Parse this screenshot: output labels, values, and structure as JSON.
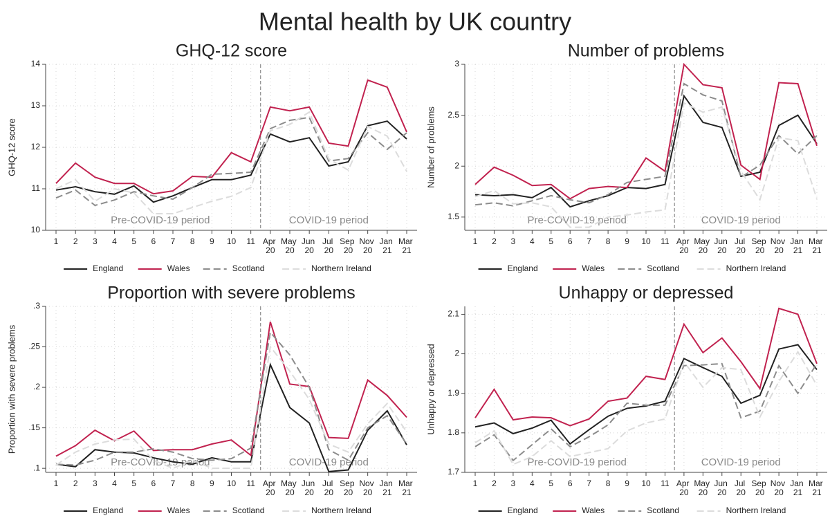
{
  "title": "Mental health by UK country",
  "chart_data": [
    {
      "type": "line",
      "title": "GHQ-12 score",
      "ylabel": "GHQ-12 score",
      "categories": [
        "1",
        "2",
        "3",
        "4",
        "5",
        "6",
        "7",
        "8",
        "9",
        "10",
        "11",
        "Apr 20",
        "May 20",
        "Jun 20",
        "Jul 20",
        "Sep 20",
        "Nov 20",
        "Jan 21",
        "Mar 21"
      ],
      "series": [
        {
          "name": "England",
          "color": "#222222",
          "dash": "solid",
          "values": [
            10.97,
            11.05,
            10.93,
            10.87,
            11.07,
            10.68,
            10.83,
            11.03,
            11.22,
            11.22,
            11.33,
            12.32,
            12.13,
            12.23,
            11.55,
            11.65,
            12.52,
            12.63,
            12.2
          ]
        },
        {
          "name": "Wales",
          "color": "#c1224f",
          "dash": "solid",
          "values": [
            11.13,
            11.62,
            11.28,
            11.13,
            11.13,
            10.88,
            10.95,
            11.3,
            11.28,
            11.87,
            11.65,
            12.97,
            12.88,
            12.97,
            12.1,
            12.03,
            13.62,
            13.45,
            12.37
          ]
        },
        {
          "name": "Scotland",
          "color": "#8c8c8c",
          "dash": "dashed",
          "values": [
            10.78,
            10.97,
            10.6,
            10.73,
            10.93,
            10.83,
            10.75,
            11.03,
            11.35,
            11.37,
            11.4,
            12.45,
            12.65,
            12.72,
            11.67,
            11.73,
            12.35,
            11.95,
            12.35
          ]
        },
        {
          "name": "Northern Ireland",
          "color": "#dcdcdc",
          "dash": "dashed",
          "values": [
            11.0,
            11.22,
            10.7,
            11.0,
            10.9,
            10.4,
            10.4,
            10.55,
            10.7,
            10.82,
            11.03,
            12.4,
            12.55,
            12.85,
            11.72,
            11.45,
            12.5,
            12.27,
            11.42
          ]
        }
      ],
      "ylim": [
        10,
        14
      ],
      "yticks": [
        10,
        11,
        12,
        13,
        14
      ],
      "grid": true,
      "legend": "bottom",
      "annotations": [
        "Pre-COVID-19 period",
        "COVID-19 period"
      ]
    },
    {
      "type": "line",
      "title": "Number of problems",
      "ylabel": "Number of problems",
      "categories": [
        "1",
        "2",
        "3",
        "4",
        "5",
        "6",
        "7",
        "8",
        "9",
        "10",
        "11",
        "Apr 20",
        "May 20",
        "Jun 20",
        "Jul 20",
        "Sep 20",
        "Nov 20",
        "Jan 21",
        "Mar 21"
      ],
      "series": [
        {
          "name": "England",
          "color": "#222222",
          "dash": "solid",
          "values": [
            1.72,
            1.71,
            1.72,
            1.69,
            1.79,
            1.6,
            1.66,
            1.71,
            1.79,
            1.78,
            1.82,
            2.69,
            2.43,
            2.38,
            1.9,
            1.94,
            2.4,
            2.5,
            2.22
          ]
        },
        {
          "name": "Wales",
          "color": "#c1224f",
          "dash": "solid",
          "values": [
            1.82,
            1.99,
            1.91,
            1.81,
            1.82,
            1.68,
            1.78,
            1.8,
            1.79,
            2.08,
            1.95,
            3.0,
            2.8,
            2.77,
            2.01,
            1.87,
            2.82,
            2.81,
            2.2
          ]
        },
        {
          "name": "Scotland",
          "color": "#8c8c8c",
          "dash": "dashed",
          "values": [
            1.62,
            1.64,
            1.61,
            1.66,
            1.71,
            1.67,
            1.64,
            1.72,
            1.84,
            1.87,
            1.9,
            2.81,
            2.7,
            2.64,
            1.89,
            2.01,
            2.3,
            2.12,
            2.3
          ]
        },
        {
          "name": "Northern Ireland",
          "color": "#dcdcdc",
          "dash": "dashed",
          "values": [
            1.7,
            1.76,
            1.63,
            1.64,
            1.6,
            1.4,
            1.4,
            1.5,
            1.52,
            1.55,
            1.57,
            2.62,
            2.53,
            2.58,
            1.95,
            1.67,
            2.28,
            2.25,
            1.68
          ]
        }
      ],
      "ylim": [
        1.37,
        3
      ],
      "yticks": [
        1.5,
        2,
        2.5,
        3
      ],
      "grid": true,
      "legend": "bottom",
      "annotations": [
        "Pre-COVID-19 period",
        "COVID-19 period"
      ]
    },
    {
      "type": "line",
      "title": "Proportion with severe problems",
      "ylabel": "Proportion with severe problems",
      "categories": [
        "1",
        "2",
        "3",
        "4",
        "5",
        "6",
        "7",
        "8",
        "9",
        "10",
        "11",
        "Apr 20",
        "May 20",
        "Jun 20",
        "Jul 20",
        "Sep 20",
        "Nov 20",
        "Jan 21",
        "Mar 21"
      ],
      "series": [
        {
          "name": "England",
          "color": "#222222",
          "dash": "solid",
          "values": [
            0.105,
            0.102,
            0.123,
            0.12,
            0.119,
            0.113,
            0.108,
            0.105,
            0.113,
            0.108,
            0.108,
            0.228,
            0.175,
            0.156,
            0.096,
            0.098,
            0.147,
            0.171,
            0.129
          ]
        },
        {
          "name": "Wales",
          "color": "#c1224f",
          "dash": "solid",
          "values": [
            0.115,
            0.128,
            0.147,
            0.134,
            0.146,
            0.122,
            0.123,
            0.123,
            0.13,
            0.135,
            0.116,
            0.281,
            0.204,
            0.201,
            0.138,
            0.137,
            0.209,
            0.19,
            0.163
          ]
        },
        {
          "name": "Scotland",
          "color": "#8c8c8c",
          "dash": "dashed",
          "values": [
            0.105,
            0.104,
            0.11,
            0.12,
            0.12,
            0.124,
            0.12,
            0.112,
            0.11,
            0.112,
            0.125,
            0.268,
            0.24,
            0.2,
            0.123,
            0.11,
            0.15,
            0.165,
            0.13
          ]
        },
        {
          "name": "Northern Ireland",
          "color": "#dcdcdc",
          "dash": "dashed",
          "values": [
            0.104,
            0.12,
            0.13,
            0.135,
            0.136,
            0.11,
            0.1,
            0.11,
            0.1,
            0.1,
            0.1,
            0.25,
            0.22,
            0.185,
            0.13,
            0.12,
            0.155,
            0.18,
            0.145
          ]
        }
      ],
      "ylim": [
        0.095,
        0.3
      ],
      "yticks": [
        {
          "value": 0.1,
          "label": ".1"
        },
        {
          "value": 0.15,
          "label": ".15"
        },
        {
          "value": 0.2,
          "label": ".2"
        },
        {
          "value": 0.25,
          "label": ".25"
        },
        {
          "value": 0.3,
          "label": ".3"
        }
      ],
      "grid": true,
      "legend": "bottom",
      "annotations": [
        "Pre-COVID-19 period",
        "COVID-19 period"
      ]
    },
    {
      "type": "line",
      "title": "Unhappy or depressed",
      "ylabel": "Unhappy or depressed",
      "categories": [
        "1",
        "2",
        "3",
        "4",
        "5",
        "6",
        "7",
        "8",
        "9",
        "10",
        "11",
        "Apr 20",
        "May 20",
        "Jun 20",
        "Jul 20",
        "Sep 20",
        "Nov 20",
        "Jan 21",
        "Mar 21"
      ],
      "series": [
        {
          "name": "England",
          "color": "#222222",
          "dash": "solid",
          "values": [
            1.815,
            1.825,
            1.798,
            1.812,
            1.832,
            1.772,
            1.808,
            1.842,
            1.862,
            1.868,
            1.88,
            1.988,
            1.965,
            1.943,
            1.875,
            1.895,
            2.012,
            2.023,
            1.96
          ]
        },
        {
          "name": "Wales",
          "color": "#c1224f",
          "dash": "solid",
          "values": [
            1.838,
            1.91,
            1.833,
            1.84,
            1.838,
            1.818,
            1.835,
            1.88,
            1.888,
            1.943,
            1.935,
            2.075,
            2.003,
            2.04,
            1.98,
            1.912,
            2.115,
            2.1,
            1.975
          ]
        },
        {
          "name": "Scotland",
          "color": "#8c8c8c",
          "dash": "dashed",
          "values": [
            1.765,
            1.795,
            1.73,
            1.77,
            1.81,
            1.765,
            1.79,
            1.82,
            1.875,
            1.87,
            1.87,
            1.97,
            1.972,
            1.975,
            1.838,
            1.855,
            1.97,
            1.9,
            1.975
          ]
        },
        {
          "name": "Northern Ireland",
          "color": "#dcdcdc",
          "dash": "dashed",
          "values": [
            1.775,
            1.805,
            1.72,
            1.74,
            1.78,
            1.74,
            1.75,
            1.76,
            1.805,
            1.825,
            1.835,
            1.98,
            1.915,
            1.965,
            1.96,
            1.84,
            1.93,
            2.005,
            1.92
          ]
        }
      ],
      "ylim": [
        1.7,
        2.12
      ],
      "yticks": [
        1.7,
        1.8,
        1.9,
        2,
        2.1
      ],
      "grid": true,
      "legend": "bottom",
      "annotations": [
        "Pre-COVID-19 period",
        "COVID-19 period"
      ]
    }
  ]
}
